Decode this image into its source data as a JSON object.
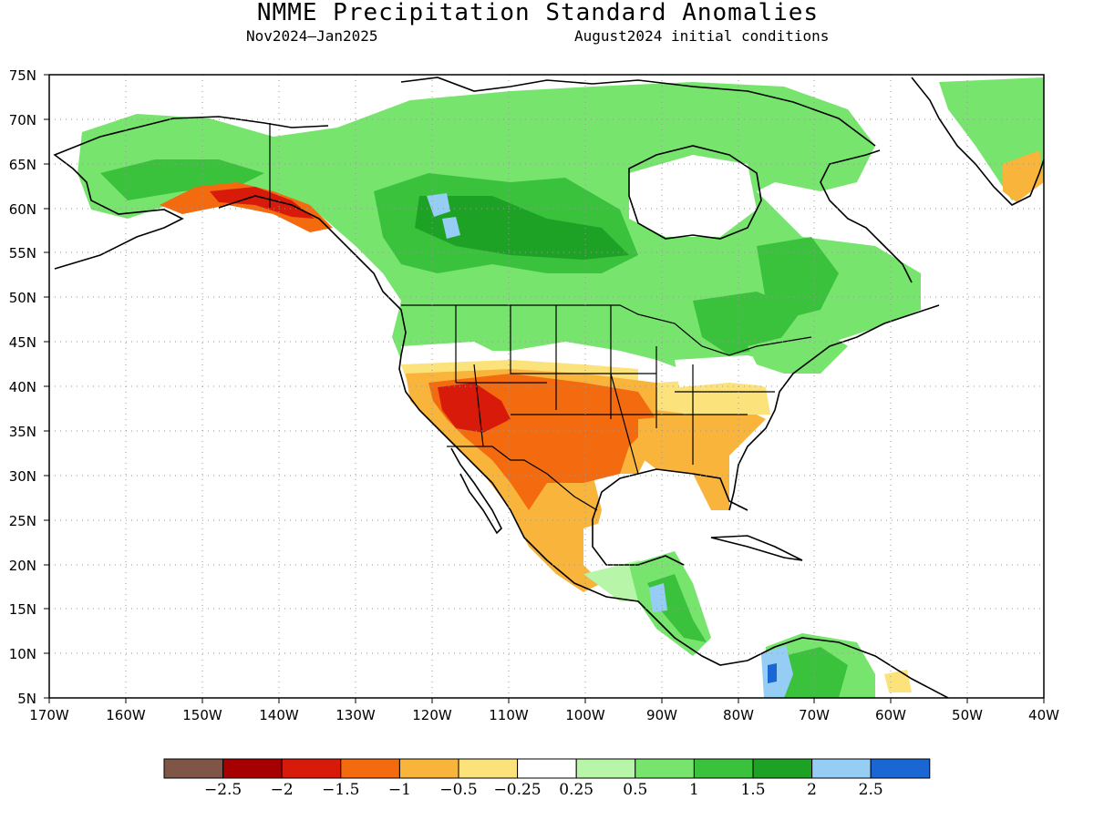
{
  "title": "NMME Precipitation Standard Anomalies",
  "subtitle_left": "Nov2024–Jan2025",
  "subtitle_right": "August2024 initial conditions",
  "axes": {
    "lat_labels": [
      "75N",
      "70N",
      "65N",
      "60N",
      "55N",
      "50N",
      "45N",
      "40N",
      "35N",
      "30N",
      "25N",
      "20N",
      "15N",
      "10N",
      "5N"
    ],
    "lon_labels": [
      "170W",
      "160W",
      "150W",
      "140W",
      "130W",
      "120W",
      "110W",
      "100W",
      "90W",
      "80W",
      "70W",
      "60W",
      "50W",
      "40W"
    ],
    "lat_range": [
      5,
      75
    ],
    "lon_range": [
      -170,
      -40
    ],
    "grid": "dotted"
  },
  "colorbar": {
    "colors": [
      "#7f5548",
      "#a60000",
      "#d81a0b",
      "#f46a0e",
      "#f9b43c",
      "#fbe27a",
      "#ffffff",
      "#b7f5a8",
      "#77e46e",
      "#3ac23c",
      "#1ea225",
      "#95cdf5",
      "#1a66d2"
    ],
    "labels": [
      "−2.5",
      "−2",
      "−1.5",
      "−1",
      "−0.5",
      "−0.25",
      "0.25",
      "0.5",
      "1",
      "1.5",
      "2",
      "2.5"
    ]
  },
  "regions": [
    {
      "name": "southwest-us-dry",
      "color": "#f46a0e"
    },
    {
      "name": "arizona-very-dry",
      "color": "#d81a0b"
    },
    {
      "name": "southeast-us-dry",
      "color": "#f9b43c"
    },
    {
      "name": "alaska-south-coast-dry",
      "color": "#d81a0b"
    },
    {
      "name": "canada-wet",
      "color": "#77e46e"
    },
    {
      "name": "hudson-bay-region-wet",
      "color": "#3ac23c"
    },
    {
      "name": "quebec-wet",
      "color": "#3ac23c"
    },
    {
      "name": "central-america-wet",
      "color": "#3ac23c"
    },
    {
      "name": "colombia-very-wet",
      "color": "#95cdf5"
    }
  ]
}
